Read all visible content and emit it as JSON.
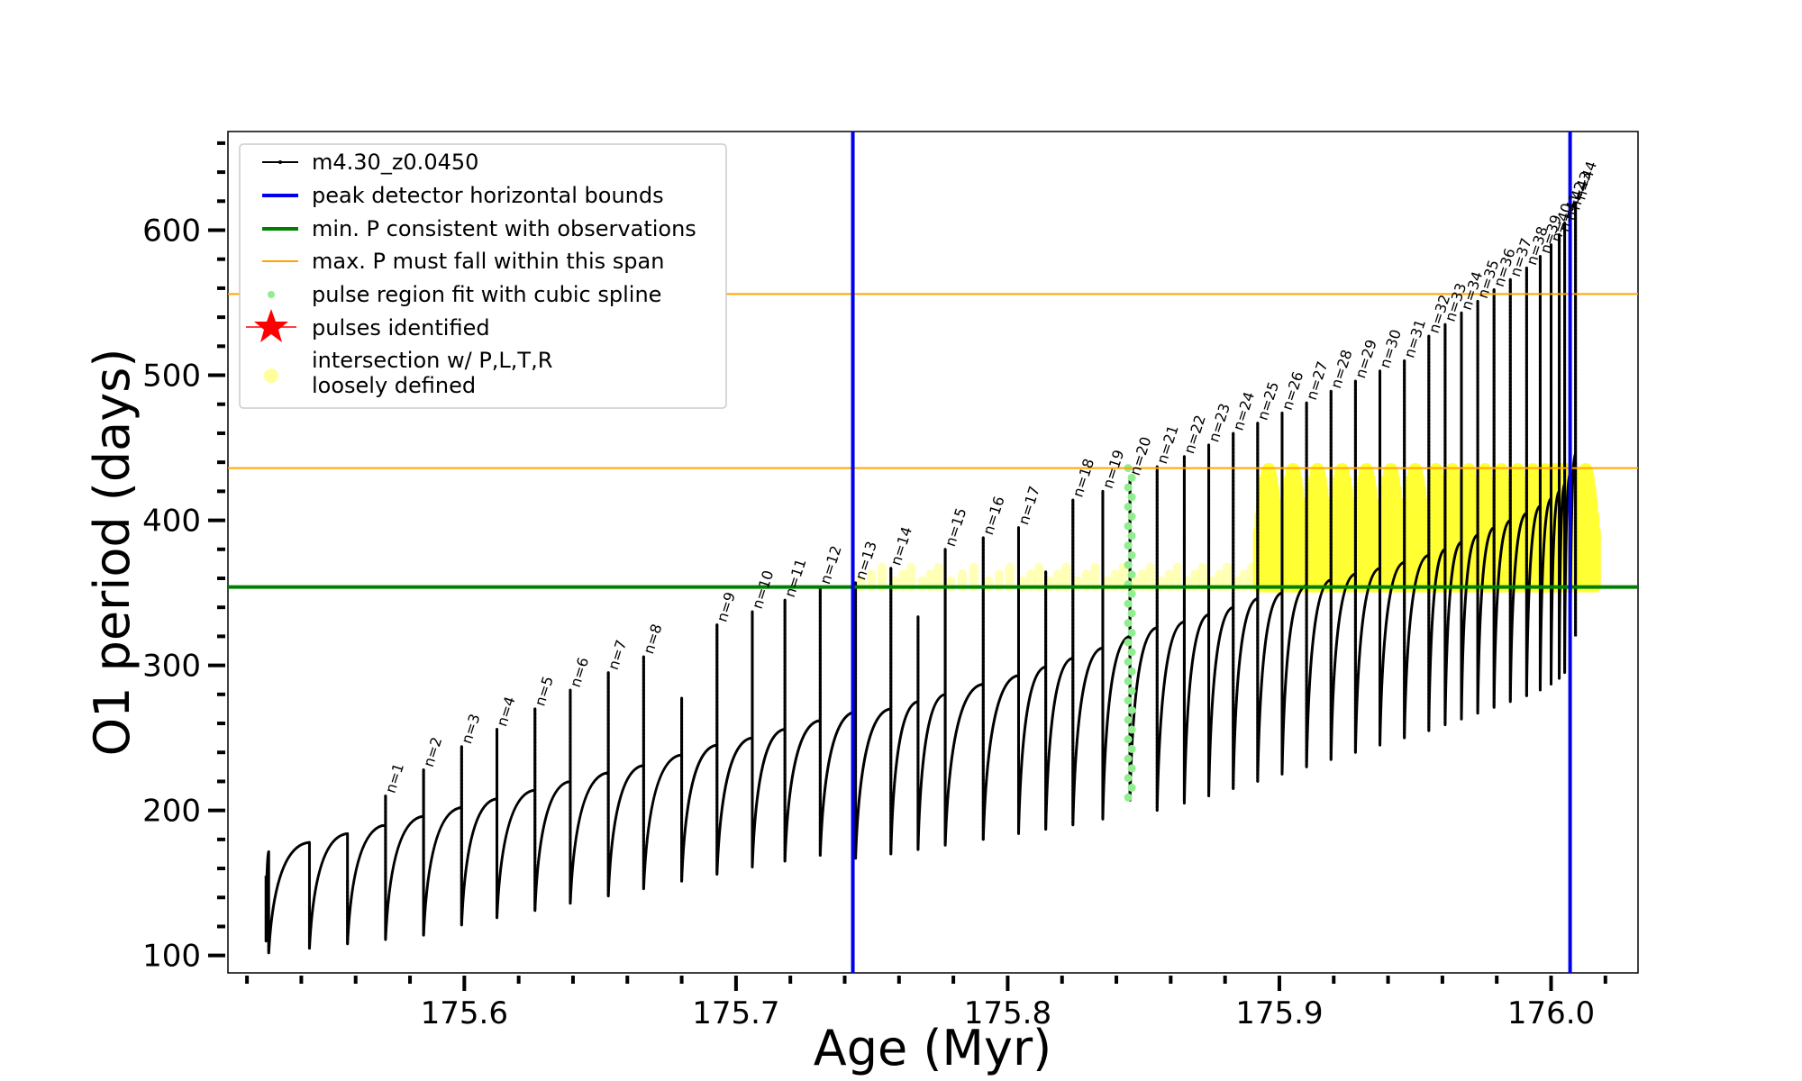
{
  "chart_data": {
    "type": "line",
    "xlabel": "Age (Myr)",
    "ylabel": "O1 period (days)",
    "xlim": [
      175.513,
      176.032
    ],
    "ylim": [
      88,
      668
    ],
    "x_ticks": [
      175.6,
      175.7,
      175.8,
      175.9,
      176.0
    ],
    "x_tick_labels": [
      "175.6",
      "175.7",
      "175.8",
      "175.9",
      "176.0"
    ],
    "y_ticks": [
      100,
      200,
      300,
      400,
      500,
      600
    ],
    "y_tick_labels": [
      "100",
      "200",
      "300",
      "400",
      "500",
      "600"
    ],
    "grid": false,
    "legend_position": "upper-left",
    "legend": [
      {
        "label": "m4.30_z0.0450",
        "color": "#000000",
        "marker": "line-dot"
      },
      {
        "label": "peak detector horizontal bounds",
        "color": "#0000ee",
        "marker": "line"
      },
      {
        "label": "min. P consistent with observations",
        "color": "#008000",
        "marker": "line"
      },
      {
        "label": "max. P must fall within this span",
        "color": "#ffa500",
        "marker": "thin-line"
      },
      {
        "label": "pulse region fit with cubic spline",
        "color": "#90ee90",
        "marker": "dot"
      },
      {
        "label": "pulses identified",
        "color": "#ff0000",
        "marker": "star"
      },
      {
        "label": "intersection w/ P,L,T,R",
        "label_line2": "loosely defined",
        "color": "#ffff99",
        "marker": "big-dot"
      }
    ],
    "vertical_lines": [
      {
        "x": 175.743,
        "color": "#0000ee",
        "series": "peak detector horizontal bounds"
      },
      {
        "x": 176.007,
        "color": "#0000ee",
        "series": "peak detector horizontal bounds"
      }
    ],
    "horizontal_lines": [
      {
        "y": 354,
        "color": "#008000",
        "series": "min. P consistent with observations"
      },
      {
        "y": 436,
        "color": "#ffa500",
        "series": "max. P must fall within this span"
      },
      {
        "y": 556,
        "color": "#ffa500",
        "series": "max. P must fall within this span"
      }
    ],
    "spline_region": {
      "x": 175.845,
      "y_min": 209,
      "y_max": 436
    },
    "series_name": "m4.30_z0.0450",
    "pulses": [
      {
        "label": "n=1",
        "age": 175.571,
        "peak": 210,
        "bottom": 111,
        "plateau": 190
      },
      {
        "label": "n=2",
        "age": 175.585,
        "peak": 228,
        "bottom": 114,
        "plateau": 196
      },
      {
        "label": "n=3",
        "age": 175.599,
        "peak": 244,
        "bottom": 121,
        "plateau": 202
      },
      {
        "label": "n=4",
        "age": 175.612,
        "peak": 256,
        "bottom": 126,
        "plateau": 208
      },
      {
        "label": "n=5",
        "age": 175.626,
        "peak": 270,
        "bottom": 131,
        "plateau": 214
      },
      {
        "label": "n=6",
        "age": 175.639,
        "peak": 283,
        "bottom": 136,
        "plateau": 220
      },
      {
        "label": "n=7",
        "age": 175.653,
        "peak": 295,
        "bottom": 141,
        "plateau": 226
      },
      {
        "label": "n=8",
        "age": 175.666,
        "peak": 306,
        "bottom": 146,
        "plateau": 231
      },
      {
        "label": "n=9",
        "age": 175.693,
        "peak": 328,
        "bottom": 156,
        "plateau": 245
      },
      {
        "label": "n=10",
        "age": 175.706,
        "peak": 337,
        "bottom": 161,
        "plateau": 250
      },
      {
        "label": "n=11",
        "age": 175.718,
        "peak": 345,
        "bottom": 165,
        "plateau": 256
      },
      {
        "label": "n=12",
        "age": 175.731,
        "peak": 354,
        "bottom": 169,
        "plateau": 262
      },
      {
        "label": "n=13",
        "age": 175.744,
        "peak": 357,
        "bottom": 167,
        "plateau": 268
      },
      {
        "label": "n=14",
        "age": 175.757,
        "peak": 367,
        "bottom": 170,
        "plateau": 270
      },
      {
        "label": "n=15",
        "age": 175.777,
        "peak": 380,
        "bottom": 176,
        "plateau": 280
      },
      {
        "label": "n=16",
        "age": 175.791,
        "peak": 388,
        "bottom": 180,
        "plateau": 287
      },
      {
        "label": "n=17",
        "age": 175.804,
        "peak": 395,
        "bottom": 184,
        "plateau": 293
      },
      {
        "label": "n=18",
        "age": 175.824,
        "peak": 414,
        "bottom": 190,
        "plateau": 305
      },
      {
        "label": "n=19",
        "age": 175.835,
        "peak": 420,
        "bottom": 194,
        "plateau": 312
      },
      {
        "label": "n=20",
        "age": 175.845,
        "peak": 429,
        "bottom": 207,
        "plateau": 320
      },
      {
        "label": "n=21",
        "age": 175.855,
        "peak": 437,
        "bottom": 200,
        "plateau": 326
      },
      {
        "label": "n=22",
        "age": 175.865,
        "peak": 444,
        "bottom": 205,
        "plateau": 330
      },
      {
        "label": "n=23",
        "age": 175.874,
        "peak": 452,
        "bottom": 210,
        "plateau": 335
      },
      {
        "label": "n=24",
        "age": 175.883,
        "peak": 460,
        "bottom": 215,
        "plateau": 340
      },
      {
        "label": "n=25",
        "age": 175.892,
        "peak": 467,
        "bottom": 220,
        "plateau": 346
      },
      {
        "label": "n=26",
        "age": 175.901,
        "peak": 474,
        "bottom": 225,
        "plateau": 350
      },
      {
        "label": "n=27",
        "age": 175.91,
        "peak": 481,
        "bottom": 230,
        "plateau": 355
      },
      {
        "label": "n=28",
        "age": 175.919,
        "peak": 489,
        "bottom": 235,
        "plateau": 359
      },
      {
        "label": "n=29",
        "age": 175.928,
        "peak": 496,
        "bottom": 240,
        "plateau": 363
      },
      {
        "label": "n=30",
        "age": 175.937,
        "peak": 503,
        "bottom": 245,
        "plateau": 367
      },
      {
        "label": "n=31",
        "age": 175.946,
        "peak": 510,
        "bottom": 250,
        "plateau": 371
      },
      {
        "label": "n=32",
        "age": 175.955,
        "peak": 527,
        "bottom": 255,
        "plateau": 376
      },
      {
        "label": "n=33",
        "age": 175.961,
        "peak": 535,
        "bottom": 259,
        "plateau": 380
      },
      {
        "label": "n=34",
        "age": 175.967,
        "peak": 543,
        "bottom": 263,
        "plateau": 385
      },
      {
        "label": "n=35",
        "age": 175.973,
        "peak": 551,
        "bottom": 267,
        "plateau": 390
      },
      {
        "label": "n=36",
        "age": 175.979,
        "peak": 559,
        "bottom": 271,
        "plateau": 395
      },
      {
        "label": "n=37",
        "age": 175.985,
        "peak": 566,
        "bottom": 275,
        "plateau": 400
      },
      {
        "label": "n=38",
        "age": 175.991,
        "peak": 574,
        "bottom": 279,
        "plateau": 405
      },
      {
        "label": "n=39",
        "age": 175.996,
        "peak": 582,
        "bottom": 283,
        "plateau": 410
      },
      {
        "label": "n=40",
        "age": 176.0,
        "peak": 590,
        "bottom": 287,
        "plateau": 415
      },
      {
        "label": "n=41",
        "age": 176.003,
        "peak": 597,
        "bottom": 291,
        "plateau": 420
      },
      {
        "label": "n=42",
        "age": 176.005,
        "peak": 605,
        "bottom": 295,
        "plateau": 425
      },
      {
        "label": "n=43",
        "age": 176.007,
        "peak": 612,
        "bottom": 299,
        "plateau": 432
      },
      {
        "label": "n=44",
        "age": 176.009,
        "peak": 619,
        "bottom": 320,
        "plateau": 446
      }
    ],
    "unlabeled_pulse_ages": [
      175.528,
      175.543,
      175.557,
      175.68,
      175.767,
      175.814
    ]
  }
}
